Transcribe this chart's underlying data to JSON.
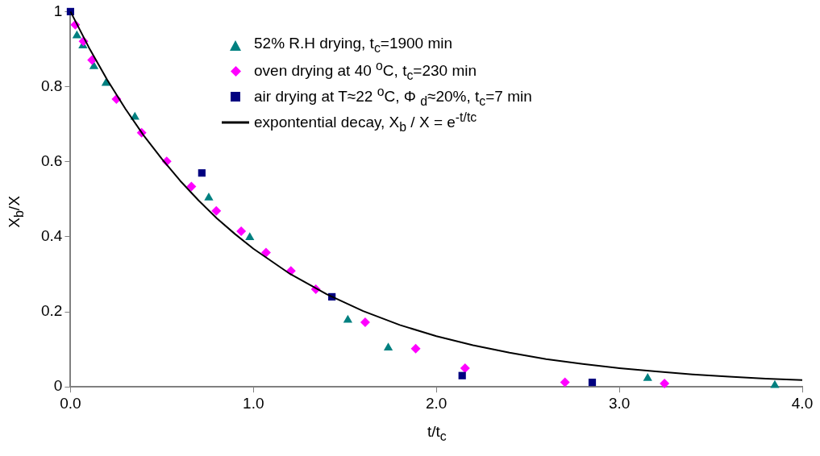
{
  "chart_data": {
    "type": "scatter",
    "xlabel": "t/t$_{c}$",
    "ylabel": "X$_{b}$/X",
    "xlim": [
      0,
      4
    ],
    "xticks": [
      {
        "value": 0,
        "label": "0.0"
      },
      {
        "value": 1,
        "label": "1.0"
      },
      {
        "value": 2,
        "label": "2.0"
      },
      {
        "value": 3,
        "label": "3.0"
      },
      {
        "value": 4,
        "label": "4.0"
      }
    ],
    "ylim": [
      0,
      1
    ],
    "yticks": [
      0,
      0.2,
      0.4,
      0.6,
      0.8,
      1
    ],
    "grid": false,
    "legend": "top",
    "series": [
      {
        "name": "52% R.H drying,  t$_{c}$=1900 min",
        "color": "#008080",
        "marker": "triangle",
        "x": [
          0.035,
          0.068,
          0.128,
          0.194,
          0.352,
          0.756,
          0.98,
          1.516,
          1.737,
          3.155,
          3.85
        ],
        "values": [
          0.936,
          0.909,
          0.854,
          0.809,
          0.719,
          0.504,
          0.398,
          0.178,
          0.104,
          0.023,
          0.004
        ]
      },
      {
        "name": "oven drying at 40 $^{o}$C,  t$_{c}$=230 min",
        "color": "#ff00ff",
        "marker": "diamond",
        "x": [
          0.026,
          0.071,
          0.118,
          0.251,
          0.389,
          0.526,
          0.661,
          0.797,
          0.933,
          1.069,
          1.205,
          1.341,
          1.611,
          1.887,
          2.157,
          2.703,
          3.247
        ],
        "values": [
          0.965,
          0.921,
          0.871,
          0.767,
          0.677,
          0.601,
          0.534,
          0.469,
          0.415,
          0.358,
          0.309,
          0.26,
          0.172,
          0.102,
          0.05,
          0.012,
          0.009
        ]
      },
      {
        "name": "air drying at  T≈22 $^{o}$C, Φ $_{d}$≈20%, t$_{c}$=7 min",
        "color": "#000080",
        "marker": "square",
        "x": [
          0,
          0.718,
          1.429,
          2.141,
          2.852
        ],
        "values": [
          1,
          0.57,
          0.24,
          0.03,
          0.012
        ]
      },
      {
        "name": "expontential decay,  X$_{b}$ / X = e$^{-t/tc}$",
        "color": "#000000",
        "type": "line",
        "marker": "none",
        "line_style": "solid",
        "x": [
          0,
          0.1,
          0.2,
          0.3,
          0.4,
          0.5,
          0.6,
          0.7,
          0.8,
          0.9,
          1,
          1.2,
          1.4,
          1.6,
          1.8,
          2,
          2.2,
          2.4,
          2.6,
          2.8,
          3,
          3.2,
          3.4,
          3.6,
          3.8,
          4
        ],
        "values": [
          1,
          0.905,
          0.819,
          0.741,
          0.67,
          0.607,
          0.549,
          0.497,
          0.449,
          0.407,
          0.368,
          0.301,
          0.247,
          0.202,
          0.165,
          0.135,
          0.111,
          0.091,
          0.074,
          0.061,
          0.05,
          0.041,
          0.033,
          0.027,
          0.022,
          0.018
        ]
      }
    ]
  }
}
